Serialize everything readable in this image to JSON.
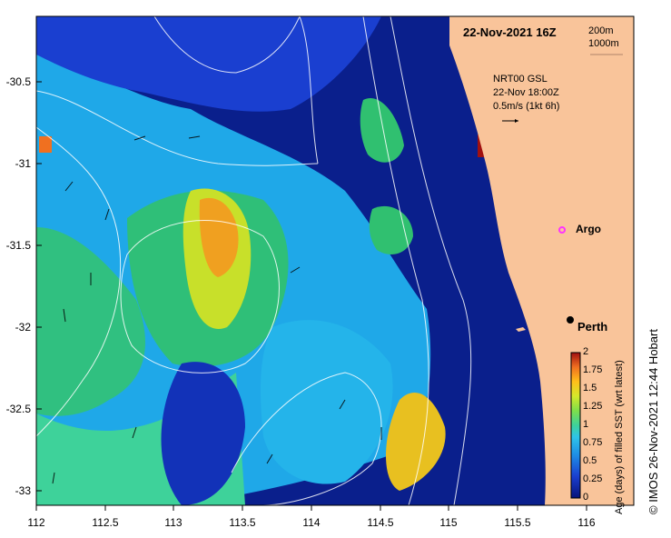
{
  "map": {
    "title": "22-Nov-2021 16Z",
    "depth_contours": [
      "200m",
      "1000m"
    ],
    "current_info": {
      "source": "NRT00 GSL",
      "timestamp": "22-Nov 18:00Z",
      "scale": "0.5m/s (1kt 6h)"
    },
    "places": {
      "argo": "Argo",
      "perth": "Perth"
    },
    "lat_labels": [
      "-30.5",
      "-31",
      "-31.5",
      "-32",
      "-32.5",
      "-33"
    ],
    "lon_labels": [
      "112",
      "112.5",
      "113",
      "113.5",
      "114",
      "114.5",
      "115",
      "115.5",
      "116"
    ],
    "colorbar": {
      "title": "Age (days) of filled SST (wrt latest)",
      "ticks": [
        "2",
        "1.75",
        "1.5",
        "1.25",
        "1",
        "0.75",
        "0.5",
        "0.25",
        "0"
      ],
      "range": [
        0,
        2
      ]
    },
    "credit": "© IMOS 26-Nov-2021 12:44 Hobart",
    "colors": {
      "land": "#f9c49a",
      "ocean_deep": "#0a1f8c",
      "argo_marker": "#ff33ff"
    }
  }
}
